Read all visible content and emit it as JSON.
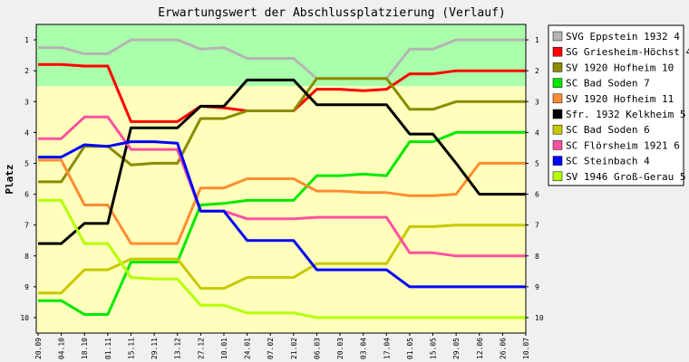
{
  "chart_data": {
    "type": "line",
    "title": "Erwartungswert der Abschlussplatzierung (Verlauf)",
    "ylabel": "Platz",
    "xlabel": "",
    "ylim": [
      0.5,
      10.5
    ],
    "y_inverted": true,
    "y_ticks": [
      "1",
      "2",
      "3",
      "4",
      "5",
      "6",
      "7",
      "8",
      "9",
      "10"
    ],
    "grid": false,
    "background_bands": [
      {
        "from": 0.5,
        "to": 2.5,
        "color": "#aaffaa"
      },
      {
        "from": 2.5,
        "to": 10.5,
        "color": "#ffffbb"
      }
    ],
    "legend_placement": "right",
    "x": [
      "20.09",
      "04.10",
      "18.10",
      "01.11",
      "15.11",
      "29.11",
      "13.12",
      "27.12",
      "10.01",
      "24.01",
      "07.02",
      "21.02",
      "06.03",
      "20.03",
      "03.04",
      "17.04",
      "01.05",
      "15.05",
      "29.05",
      "12.06",
      "26.06",
      "10.07"
    ],
    "series": [
      {
        "name": "SVG Eppstein 1932 4",
        "color": "#b4b4b4",
        "values": [
          1.25,
          1.25,
          1.45,
          1.45,
          1.0,
          1.0,
          1.0,
          1.3,
          1.25,
          1.6,
          1.6,
          1.6,
          2.25,
          2.25,
          2.25,
          2.25,
          1.3,
          1.3,
          1.0,
          1.0,
          1.0,
          1.0
        ]
      },
      {
        "name": "SG Griesheim-Höchst 4",
        "color": "#ff0000",
        "values": [
          1.8,
          1.8,
          1.85,
          1.85,
          3.65,
          3.65,
          3.65,
          3.15,
          3.2,
          3.3,
          3.3,
          3.3,
          2.6,
          2.6,
          2.65,
          2.6,
          2.1,
          2.1,
          2.0,
          2.0,
          2.0,
          2.0
        ]
      },
      {
        "name": "SV 1920 Hofheim 10",
        "color": "#8b8b00",
        "values": [
          5.6,
          5.6,
          4.45,
          4.45,
          5.05,
          5.0,
          5.0,
          3.55,
          3.55,
          3.3,
          3.3,
          3.3,
          2.25,
          2.25,
          2.25,
          2.25,
          3.25,
          3.25,
          3.0,
          3.0,
          3.0,
          3.0
        ]
      },
      {
        "name": "SC Bad Soden 7",
        "color": "#00e800",
        "values": [
          9.45,
          9.45,
          9.9,
          9.9,
          8.2,
          8.2,
          8.2,
          6.35,
          6.3,
          6.2,
          6.2,
          6.2,
          5.4,
          5.4,
          5.35,
          5.4,
          4.3,
          4.3,
          4.0,
          4.0,
          4.0,
          4.0
        ]
      },
      {
        "name": "SV 1920 Hofheim 11",
        "color": "#ff8c32",
        "values": [
          4.9,
          4.9,
          6.35,
          6.35,
          7.6,
          7.6,
          7.6,
          5.8,
          5.8,
          5.5,
          5.5,
          5.5,
          5.9,
          5.9,
          5.95,
          5.95,
          6.05,
          6.05,
          6.0,
          5.0,
          5.0,
          5.0
        ]
      },
      {
        "name": "Sfr. 1932 Kelkheim 5",
        "color": "#000000",
        "values": [
          7.6,
          7.6,
          6.95,
          6.95,
          3.85,
          3.85,
          3.85,
          3.15,
          3.15,
          2.3,
          2.3,
          2.3,
          3.1,
          3.1,
          3.1,
          3.1,
          4.05,
          4.05,
          5.0,
          6.0,
          6.0,
          6.0
        ]
      },
      {
        "name": "SC Bad Soden 6",
        "color": "#c8c800",
        "values": [
          9.2,
          9.2,
          8.45,
          8.45,
          8.1,
          8.1,
          8.1,
          9.05,
          9.05,
          8.7,
          8.7,
          8.7,
          8.25,
          8.25,
          8.25,
          8.25,
          7.05,
          7.05,
          7.0,
          7.0,
          7.0,
          7.0
        ]
      },
      {
        "name": "SC Flörsheim 1921 6",
        "color": "#ff50a0",
        "values": [
          4.2,
          4.2,
          3.5,
          3.5,
          4.55,
          4.55,
          4.55,
          6.55,
          6.55,
          6.8,
          6.8,
          6.8,
          6.75,
          6.75,
          6.75,
          6.75,
          7.9,
          7.9,
          8.0,
          8.0,
          8.0,
          8.0
        ]
      },
      {
        "name": "SC Steinbach 4",
        "color": "#0000ff",
        "values": [
          4.8,
          4.8,
          4.4,
          4.45,
          4.3,
          4.3,
          4.35,
          6.55,
          6.55,
          7.5,
          7.5,
          7.5,
          8.45,
          8.45,
          8.45,
          8.45,
          9.0,
          9.0,
          9.0,
          9.0,
          9.0,
          9.0
        ]
      },
      {
        "name": "SV 1946 Groß-Gerau 5",
        "color": "#b4ff00",
        "values": [
          6.2,
          6.2,
          7.6,
          7.6,
          8.7,
          8.75,
          8.75,
          9.6,
          9.6,
          9.85,
          9.85,
          9.85,
          10.0,
          10.0,
          10.0,
          10.0,
          10.0,
          10.0,
          10.0,
          10.0,
          10.0,
          10.0
        ]
      }
    ]
  }
}
